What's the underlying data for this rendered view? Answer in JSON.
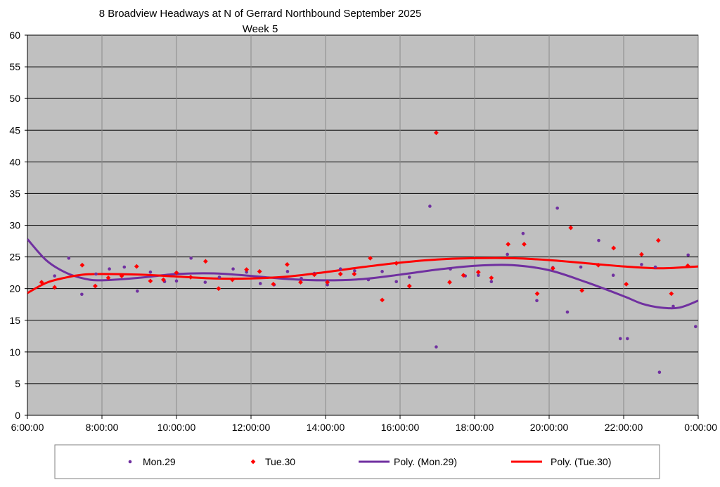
{
  "chart_data": {
    "type": "scatter",
    "title": "8 Broadview Headways at N of Gerrard Northbound September 2025",
    "subtitle": "Week 5",
    "xlabel": "",
    "ylabel": "",
    "x_unit": "time of day (hours since 0:00, 24 = midnight next day)",
    "xlim": [
      6,
      24
    ],
    "ylim": [
      0,
      60
    ],
    "x_ticks": [
      6,
      8,
      10,
      12,
      14,
      16,
      18,
      20,
      22,
      24
    ],
    "x_tick_labels": [
      "6:00:00",
      "8:00:00",
      "10:00:00",
      "12:00:00",
      "14:00:00",
      "16:00:00",
      "18:00:00",
      "20:00:00",
      "22:00:00",
      "0:00:00"
    ],
    "y_ticks": [
      0,
      5,
      10,
      15,
      20,
      25,
      30,
      35,
      40,
      45,
      50,
      55,
      60
    ],
    "y_tick_labels": [
      "0",
      "5",
      "10",
      "15",
      "20",
      "25",
      "30",
      "35",
      "40",
      "45",
      "50",
      "55",
      "60"
    ],
    "grid": "horizontal",
    "plot_background": "#c0c0c0",
    "legend_position": "bottom",
    "series": [
      {
        "name": "Mon.29",
        "kind": "points",
        "marker": "dot",
        "color": "#7030a0",
        "x": [
          6.73,
          7.11,
          7.46,
          7.84,
          8.2,
          8.6,
          8.95,
          9.3,
          9.68,
          10.0,
          10.39,
          10.77,
          11.15,
          11.52,
          11.88,
          12.25,
          12.62,
          12.98,
          13.35,
          13.7,
          14.05,
          14.4,
          14.78,
          15.15,
          15.52,
          15.9,
          16.25,
          16.8,
          16.97,
          17.35,
          17.75,
          18.1,
          18.45,
          18.88,
          19.3,
          19.67,
          20.1,
          20.22,
          20.49,
          20.85,
          21.33,
          21.72,
          21.91,
          22.1,
          22.48,
          22.85,
          22.96,
          23.33,
          23.73,
          23.93
        ],
        "y": [
          22.0,
          24.8,
          19.1,
          22.3,
          23.1,
          23.4,
          19.6,
          22.6,
          21.1,
          21.2,
          24.8,
          21.0,
          21.8,
          23.1,
          22.6,
          20.8,
          20.6,
          22.7,
          21.6,
          22.4,
          20.6,
          23.1,
          22.8,
          21.4,
          22.7,
          21.1,
          21.8,
          33.0,
          10.8,
          23.1,
          22.0,
          22.1,
          21.1,
          25.4,
          28.7,
          18.1,
          23.3,
          32.7,
          16.3,
          23.4,
          27.6,
          22.1,
          12.1,
          12.1,
          23.8,
          23.4,
          6.8,
          17.2,
          25.3,
          14.0
        ]
      },
      {
        "name": "Tue.30",
        "kind": "points",
        "marker": "diamond",
        "color": "#ff0000",
        "x": [
          6.38,
          6.73,
          7.47,
          7.82,
          8.17,
          8.53,
          8.93,
          9.3,
          9.65,
          10.0,
          10.38,
          10.78,
          11.13,
          11.5,
          11.88,
          12.23,
          12.6,
          12.97,
          13.33,
          13.7,
          14.05,
          14.4,
          14.77,
          15.2,
          15.52,
          15.9,
          16.25,
          16.97,
          17.33,
          17.7,
          18.1,
          18.45,
          18.9,
          19.33,
          19.68,
          20.1,
          20.58,
          20.88,
          21.32,
          21.73,
          22.07,
          22.48,
          22.93,
          23.28,
          23.72
        ],
        "y": [
          21.0,
          20.2,
          23.7,
          20.4,
          21.7,
          22.0,
          23.5,
          21.2,
          21.4,
          22.5,
          21.8,
          24.3,
          20.0,
          21.4,
          23.0,
          22.7,
          20.7,
          23.8,
          21.0,
          22.2,
          21.0,
          22.3,
          22.3,
          24.8,
          18.2,
          24.0,
          20.4,
          44.6,
          21.0,
          22.1,
          22.6,
          21.7,
          27.0,
          27.0,
          19.2,
          23.2,
          29.6,
          19.7,
          23.7,
          26.4,
          20.7,
          25.4,
          27.6,
          19.2,
          23.6
        ]
      },
      {
        "name": "Poly. (Mon.29)",
        "kind": "trendline",
        "color": "#7030a0",
        "x": [
          6.0,
          6.5,
          7.0,
          7.5,
          8.0,
          9.0,
          10.0,
          11.0,
          12.0,
          13.0,
          14.0,
          15.0,
          16.0,
          17.0,
          18.0,
          19.0,
          20.0,
          21.0,
          22.0,
          22.5,
          23.0,
          23.5,
          24.0
        ],
        "y": [
          27.8,
          24.5,
          22.6,
          21.6,
          21.3,
          21.7,
          22.3,
          22.4,
          22.0,
          21.5,
          21.3,
          21.5,
          22.2,
          23.0,
          23.6,
          23.7,
          22.9,
          21.0,
          18.8,
          17.6,
          17.0,
          17.0,
          18.1
        ]
      },
      {
        "name": "Poly. (Tue.30)",
        "kind": "trendline",
        "color": "#ff0000",
        "x": [
          6.0,
          6.5,
          7.0,
          7.5,
          8.0,
          9.0,
          10.0,
          11.0,
          12.0,
          13.0,
          14.0,
          15.0,
          16.0,
          17.0,
          18.0,
          19.0,
          20.0,
          21.0,
          22.0,
          23.0,
          24.0
        ],
        "y": [
          19.3,
          20.9,
          21.7,
          22.2,
          22.3,
          22.2,
          21.9,
          21.6,
          21.6,
          21.9,
          22.6,
          23.4,
          24.1,
          24.6,
          24.8,
          24.8,
          24.5,
          24.0,
          23.5,
          23.2,
          23.5
        ]
      }
    ]
  }
}
